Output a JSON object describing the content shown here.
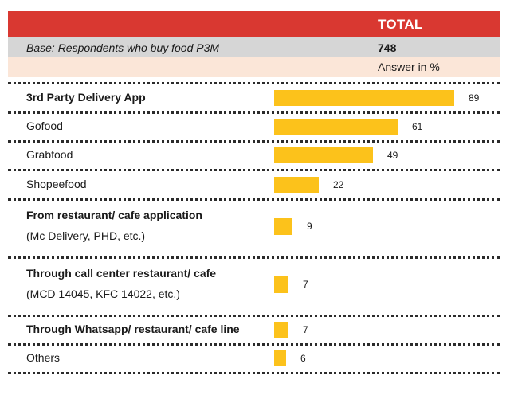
{
  "header": {
    "total_label": "TOTAL",
    "base_text": "Base: Respondents who buy food P3M",
    "base_value": "748",
    "answer_text": "Answer in %"
  },
  "colors": {
    "header_red": "#d93831",
    "base_gray": "#d6d6d6",
    "answer_peach": "#fbe6d8",
    "bar_yellow": "#fcc21b"
  },
  "chart_data": {
    "type": "bar",
    "orientation": "horizontal",
    "unit": "%",
    "xlim": [
      0,
      100
    ],
    "grid": false,
    "categories": [
      "3rd Party Delivery App",
      "Gofood",
      "Grabfood",
      "Shopeefood",
      "From restaurant/ cafe application",
      "Through call center restaurant/ cafe",
      "Through Whatsapp/ restaurant/ cafe line",
      "Others"
    ],
    "sublabels": [
      "",
      "",
      "",
      "",
      "(Mc Delivery, PHD, etc.)",
      "(MCD 14045, KFC 14022, etc.)",
      "",
      ""
    ],
    "bold": [
      true,
      false,
      false,
      false,
      true,
      true,
      true,
      false
    ],
    "values": [
      89,
      61,
      49,
      22,
      9,
      7,
      7,
      6
    ]
  }
}
